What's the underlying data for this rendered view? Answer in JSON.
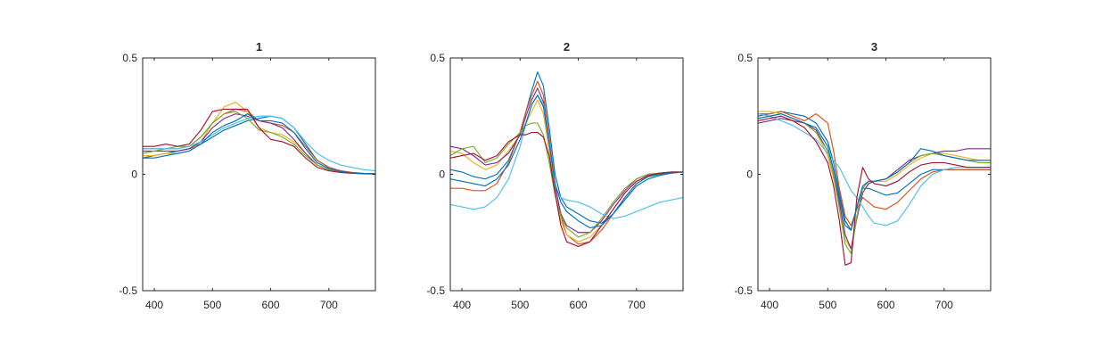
{
  "chart_data": [
    {
      "type": "line",
      "title": "1",
      "xlabel": "",
      "ylabel": "",
      "xlim": [
        380,
        780
      ],
      "ylim": [
        -0.5,
        0.5
      ],
      "x_ticks": [
        400,
        500,
        600,
        700
      ],
      "x_tick_labels": [
        "400",
        "500",
        "600",
        "700"
      ],
      "y_ticks": [
        -0.5,
        0,
        0.5
      ],
      "y_tick_labels": [
        "-0.5",
        "0",
        "0.5"
      ],
      "grid": false,
      "legend": "none",
      "x": [
        380,
        400,
        420,
        440,
        460,
        480,
        500,
        520,
        540,
        560,
        580,
        600,
        620,
        640,
        660,
        680,
        700,
        720,
        740,
        760,
        780
      ],
      "series": [
        {
          "color": "#0072BD",
          "values": [
            0.07,
            0.08,
            0.09,
            0.1,
            0.11,
            0.13,
            0.16,
            0.19,
            0.21,
            0.23,
            0.24,
            0.25,
            0.24,
            0.2,
            0.13,
            0.06,
            0.03,
            0.015,
            0.008,
            0.004,
            0.002
          ]
        },
        {
          "color": "#D95319",
          "values": [
            0.11,
            0.11,
            0.11,
            0.11,
            0.12,
            0.16,
            0.22,
            0.26,
            0.28,
            0.27,
            0.23,
            0.22,
            0.21,
            0.18,
            0.12,
            0.06,
            0.03,
            0.015,
            0.008,
            0.004,
            0.002
          ]
        },
        {
          "color": "#EDB120",
          "values": [
            0.08,
            0.08,
            0.09,
            0.09,
            0.1,
            0.14,
            0.22,
            0.29,
            0.31,
            0.27,
            0.2,
            0.18,
            0.17,
            0.14,
            0.09,
            0.04,
            0.02,
            0.01,
            0.005,
            0.003,
            0.002
          ]
        },
        {
          "color": "#7E2F8E",
          "values": [
            0.1,
            0.1,
            0.1,
            0.1,
            0.11,
            0.14,
            0.2,
            0.24,
            0.26,
            0.25,
            0.23,
            0.22,
            0.2,
            0.15,
            0.09,
            0.04,
            0.02,
            0.01,
            0.005,
            0.003,
            0.002
          ]
        },
        {
          "color": "#77AC30",
          "values": [
            0.09,
            0.1,
            0.11,
            0.12,
            0.12,
            0.16,
            0.22,
            0.26,
            0.27,
            0.24,
            0.19,
            0.18,
            0.16,
            0.13,
            0.08,
            0.04,
            0.02,
            0.01,
            0.005,
            0.003,
            0.002
          ]
        },
        {
          "color": "#4DBEEE",
          "values": [
            0.11,
            0.11,
            0.11,
            0.11,
            0.12,
            0.14,
            0.17,
            0.2,
            0.22,
            0.24,
            0.25,
            0.25,
            0.24,
            0.2,
            0.14,
            0.09,
            0.06,
            0.04,
            0.03,
            0.02,
            0.015
          ]
        },
        {
          "color": "#A2142F",
          "values": [
            0.12,
            0.12,
            0.13,
            0.12,
            0.13,
            0.19,
            0.27,
            0.28,
            0.28,
            0.28,
            0.2,
            0.15,
            0.14,
            0.12,
            0.07,
            0.03,
            0.015,
            0.008,
            0.004,
            0.002,
            0.001
          ]
        },
        {
          "color": "#0072BD",
          "values": [
            0.07,
            0.07,
            0.08,
            0.09,
            0.1,
            0.13,
            0.18,
            0.21,
            0.23,
            0.26,
            0.23,
            0.23,
            0.22,
            0.18,
            0.11,
            0.05,
            0.025,
            0.012,
            0.006,
            0.003,
            0.002
          ]
        }
      ]
    },
    {
      "type": "line",
      "title": "2",
      "xlabel": "",
      "ylabel": "",
      "xlim": [
        380,
        780
      ],
      "ylim": [
        -0.5,
        0.5
      ],
      "x_ticks": [
        400,
        500,
        600,
        700
      ],
      "x_tick_labels": [
        "400",
        "500",
        "600",
        "700"
      ],
      "y_ticks": [
        -0.5,
        0,
        0.5
      ],
      "y_tick_labels": [
        "-0.5",
        "0",
        "0.5"
      ],
      "grid": false,
      "legend": "none",
      "x": [
        380,
        400,
        420,
        440,
        460,
        480,
        500,
        510,
        520,
        530,
        540,
        550,
        560,
        570,
        580,
        600,
        620,
        640,
        660,
        680,
        700,
        720,
        740,
        760,
        780
      ],
      "series": [
        {
          "color": "#0072BD",
          "values": [
            0.02,
            0.01,
            -0.01,
            -0.02,
            0.0,
            0.06,
            0.18,
            0.27,
            0.36,
            0.44,
            0.38,
            0.2,
            0.0,
            -0.1,
            -0.14,
            -0.17,
            -0.2,
            -0.21,
            -0.17,
            -0.11,
            -0.05,
            -0.02,
            -0.005,
            0.005,
            0.01
          ]
        },
        {
          "color": "#D95319",
          "values": [
            -0.06,
            -0.06,
            -0.07,
            -0.07,
            -0.04,
            0.05,
            0.18,
            0.27,
            0.34,
            0.4,
            0.34,
            0.16,
            -0.04,
            -0.18,
            -0.26,
            -0.3,
            -0.29,
            -0.24,
            -0.17,
            -0.1,
            -0.04,
            -0.01,
            0.0,
            0.005,
            0.01
          ]
        },
        {
          "color": "#EDB120",
          "values": [
            0.1,
            0.09,
            0.05,
            0.02,
            0.04,
            0.1,
            0.17,
            0.22,
            0.27,
            0.32,
            0.26,
            0.1,
            -0.08,
            -0.2,
            -0.26,
            -0.29,
            -0.27,
            -0.22,
            -0.15,
            -0.08,
            -0.03,
            -0.01,
            0.0,
            0.005,
            0.01
          ]
        },
        {
          "color": "#7E2F8E",
          "values": [
            0.12,
            0.11,
            0.08,
            0.04,
            0.05,
            0.09,
            0.17,
            0.25,
            0.32,
            0.37,
            0.31,
            0.14,
            -0.05,
            -0.17,
            -0.22,
            -0.25,
            -0.25,
            -0.2,
            -0.13,
            -0.07,
            -0.02,
            0.0,
            0.005,
            0.01,
            0.01
          ]
        },
        {
          "color": "#77AC30",
          "values": [
            0.08,
            0.11,
            0.12,
            0.05,
            0.07,
            0.13,
            0.18,
            0.21,
            0.22,
            0.22,
            0.17,
            0.05,
            -0.09,
            -0.18,
            -0.23,
            -0.27,
            -0.25,
            -0.19,
            -0.12,
            -0.06,
            -0.02,
            0.0,
            0.005,
            0.01,
            0.01
          ]
        },
        {
          "color": "#4DBEEE",
          "values": [
            -0.13,
            -0.14,
            -0.15,
            -0.14,
            -0.1,
            -0.02,
            0.12,
            0.22,
            0.3,
            0.34,
            0.3,
            0.14,
            -0.05,
            -0.1,
            -0.11,
            -0.12,
            -0.14,
            -0.17,
            -0.19,
            -0.18,
            -0.16,
            -0.14,
            -0.12,
            -0.11,
            -0.1
          ]
        },
        {
          "color": "#A2142F",
          "values": [
            0.07,
            0.08,
            0.09,
            0.06,
            0.08,
            0.14,
            0.17,
            0.17,
            0.18,
            0.18,
            0.16,
            0.08,
            -0.08,
            -0.22,
            -0.29,
            -0.31,
            -0.29,
            -0.22,
            -0.15,
            -0.08,
            -0.03,
            -0.005,
            0.005,
            0.01,
            0.01
          ]
        },
        {
          "color": "#0072BD",
          "values": [
            -0.02,
            -0.03,
            -0.04,
            -0.05,
            -0.02,
            0.04,
            0.15,
            0.22,
            0.3,
            0.34,
            0.29,
            0.13,
            -0.04,
            -0.12,
            -0.16,
            -0.2,
            -0.23,
            -0.22,
            -0.17,
            -0.1,
            -0.04,
            -0.01,
            0.0,
            0.005,
            0.01
          ]
        }
      ]
    },
    {
      "type": "line",
      "title": "3",
      "xlabel": "",
      "ylabel": "",
      "xlim": [
        380,
        780
      ],
      "ylim": [
        -0.5,
        0.5
      ],
      "x_ticks": [
        400,
        500,
        600,
        700
      ],
      "x_tick_labels": [
        "400",
        "500",
        "600",
        "700"
      ],
      "y_ticks": [
        -0.5,
        0,
        0.5
      ],
      "y_tick_labels": [
        "-0.5",
        "0",
        "0.5"
      ],
      "grid": false,
      "legend": "none",
      "x": [
        380,
        400,
        420,
        440,
        460,
        480,
        500,
        510,
        520,
        530,
        540,
        550,
        560,
        570,
        580,
        600,
        620,
        640,
        660,
        680,
        700,
        720,
        740,
        760,
        780
      ],
      "series": [
        {
          "color": "#0072BD",
          "values": [
            0.25,
            0.26,
            0.27,
            0.26,
            0.25,
            0.22,
            0.14,
            0.05,
            -0.08,
            -0.2,
            -0.24,
            -0.14,
            -0.06,
            -0.06,
            -0.07,
            -0.09,
            -0.08,
            -0.04,
            0.0,
            0.02,
            0.02,
            0.02,
            0.02,
            0.02,
            0.02
          ]
        },
        {
          "color": "#D95319",
          "values": [
            0.26,
            0.26,
            0.27,
            0.25,
            0.23,
            0.26,
            0.22,
            0.1,
            -0.06,
            -0.18,
            -0.22,
            -0.15,
            -0.1,
            -0.12,
            -0.14,
            -0.15,
            -0.12,
            -0.07,
            -0.02,
            0.01,
            0.02,
            0.02,
            0.02,
            0.02,
            0.02
          ]
        },
        {
          "color": "#EDB120",
          "values": [
            0.27,
            0.27,
            0.26,
            0.24,
            0.22,
            0.18,
            0.08,
            -0.02,
            -0.14,
            -0.28,
            -0.32,
            -0.18,
            -0.08,
            -0.04,
            -0.03,
            -0.03,
            0.0,
            0.04,
            0.07,
            0.09,
            0.09,
            0.08,
            0.07,
            0.06,
            0.06
          ]
        },
        {
          "color": "#7E2F8E",
          "values": [
            0.22,
            0.23,
            0.24,
            0.23,
            0.22,
            0.19,
            0.1,
            0.0,
            -0.12,
            -0.26,
            -0.32,
            -0.19,
            -0.08,
            -0.04,
            -0.03,
            -0.02,
            0.02,
            0.06,
            0.08,
            0.09,
            0.1,
            0.1,
            0.11,
            0.11,
            0.11
          ]
        },
        {
          "color": "#77AC30",
          "values": [
            0.24,
            0.25,
            0.26,
            0.24,
            0.22,
            0.18,
            0.1,
            0.0,
            -0.15,
            -0.3,
            -0.34,
            -0.18,
            -0.06,
            -0.03,
            -0.03,
            -0.02,
            0.01,
            0.05,
            0.08,
            0.09,
            0.08,
            0.07,
            0.06,
            0.05,
            0.05
          ]
        },
        {
          "color": "#4DBEEE",
          "values": [
            0.26,
            0.25,
            0.23,
            0.21,
            0.18,
            0.15,
            0.09,
            0.06,
            0.03,
            -0.02,
            -0.07,
            -0.1,
            -0.14,
            -0.18,
            -0.21,
            -0.22,
            -0.2,
            -0.13,
            -0.05,
            0.0,
            0.02,
            0.03,
            0.03,
            0.03,
            0.03
          ]
        },
        {
          "color": "#A2142F",
          "values": [
            0.23,
            0.24,
            0.25,
            0.23,
            0.2,
            0.14,
            0.05,
            -0.05,
            -0.2,
            -0.39,
            -0.38,
            -0.1,
            0.03,
            -0.02,
            -0.04,
            -0.05,
            -0.03,
            0.01,
            0.04,
            0.05,
            0.05,
            0.04,
            0.03,
            0.03,
            0.03
          ]
        },
        {
          "color": "#0072BD",
          "values": [
            0.24,
            0.25,
            0.26,
            0.24,
            0.22,
            0.2,
            0.12,
            0.02,
            -0.1,
            -0.22,
            -0.24,
            -0.14,
            -0.05,
            -0.03,
            -0.03,
            -0.02,
            0.01,
            0.05,
            0.11,
            0.1,
            0.08,
            0.07,
            0.06,
            0.06,
            0.06
          ]
        }
      ]
    }
  ]
}
